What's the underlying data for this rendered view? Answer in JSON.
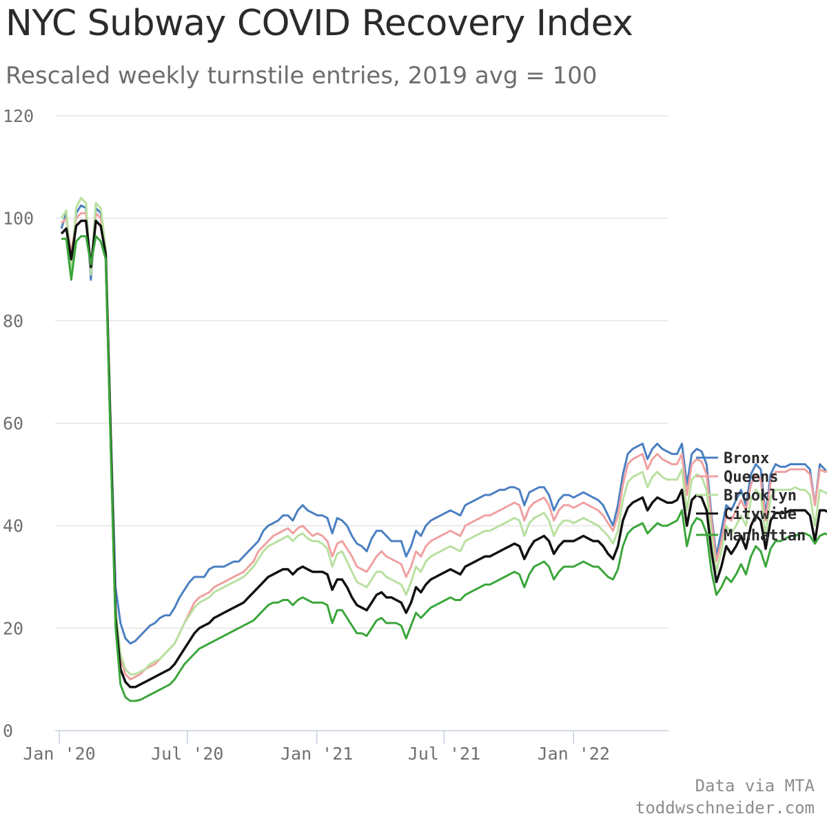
{
  "header": {
    "title": "NYC Subway COVID Recovery Index",
    "subtitle": "Rescaled weekly turnstile entries, 2019 avg = 100"
  },
  "footer": {
    "source": "Data via MTA",
    "site": "toddwschneider.com"
  },
  "chart_data": {
    "type": "line",
    "title": "NYC Subway COVID Recovery Index",
    "subtitle": "Rescaled weekly turnstile entries, 2019 avg = 100",
    "xlabel": "",
    "ylabel": "",
    "x_start": "2020-01-04",
    "x_step_days": 7,
    "xlim": [
      "2020-01-01",
      "2022-05-10"
    ],
    "ylim": [
      0,
      120
    ],
    "y_ticks": [
      0,
      20,
      40,
      60,
      80,
      100,
      120
    ],
    "x_ticks": [
      {
        "date": "2020-01-01",
        "label": "Jan '20"
      },
      {
        "date": "2020-07-01",
        "label": "Jul '20"
      },
      {
        "date": "2021-01-01",
        "label": "Jan '21"
      },
      {
        "date": "2021-07-01",
        "label": "Jul '21"
      },
      {
        "date": "2022-01-01",
        "label": "Jan '22"
      }
    ],
    "grid": true,
    "legend_position": "right",
    "series": [
      {
        "name": "Bronx",
        "color": "#4a7fc1",
        "values": [
          98,
          101,
          91,
          101,
          102.5,
          102,
          88,
          102,
          101,
          93,
          60,
          28,
          21,
          18,
          17,
          17.5,
          18.5,
          19.5,
          20.5,
          21,
          22,
          22.5,
          22.5,
          24,
          26,
          27.5,
          29,
          30,
          30,
          30,
          31.5,
          32,
          32,
          32,
          32.5,
          33,
          33,
          34,
          35,
          36,
          37,
          39,
          40,
          40.5,
          41,
          42,
          42,
          41,
          43,
          44,
          43,
          42.5,
          42,
          42,
          41.5,
          38.5,
          41.5,
          41,
          40,
          38,
          36.5,
          36,
          35,
          37.5,
          39,
          39,
          38,
          37,
          37,
          37,
          34,
          36,
          39,
          38,
          40,
          41,
          41.5,
          42,
          42.5,
          43,
          42.5,
          42,
          44,
          44.5,
          45,
          45.5,
          46,
          46,
          46.5,
          47,
          47,
          47.5,
          47.5,
          47,
          44,
          46.5,
          47,
          47.5,
          47.5,
          46,
          43,
          45,
          46,
          46,
          45.5,
          46,
          46.5,
          46,
          45.5,
          45,
          44,
          42,
          40,
          44,
          50,
          54,
          55,
          55.5,
          56,
          53,
          55,
          56,
          55,
          54.5,
          54,
          54,
          56,
          48,
          54,
          55,
          54.5,
          52,
          42,
          34,
          39,
          44,
          43,
          45,
          47,
          44,
          50,
          52,
          51,
          42,
          50,
          52,
          51.5,
          51.5,
          52,
          52,
          52,
          52,
          51,
          44,
          52,
          51,
          50,
          51.5,
          52.5
        ]
      },
      {
        "name": "Queens",
        "color": "#f0a0a0",
        "values": [
          99,
          100,
          93,
          100,
          101,
          101,
          89,
          101,
          100,
          93,
          59,
          24,
          14,
          11,
          10,
          10.5,
          11,
          12,
          12.5,
          13,
          14,
          15,
          16,
          17,
          19,
          21,
          23,
          25,
          26,
          26.5,
          27,
          28,
          28.5,
          29,
          29.5,
          30,
          30.5,
          31,
          32,
          33,
          35,
          36,
          37,
          38,
          38.5,
          39,
          39.5,
          38.5,
          39.5,
          40,
          39,
          38,
          38.5,
          38,
          37,
          34,
          36.5,
          37,
          35.5,
          34,
          32,
          31.5,
          31,
          32.5,
          34,
          35,
          34,
          33.5,
          33,
          32.5,
          30,
          32,
          35,
          34,
          36,
          37,
          37.5,
          38,
          38.5,
          39,
          38.5,
          38,
          40,
          40.5,
          41,
          41.5,
          42,
          42,
          42.5,
          43,
          43.5,
          44,
          44.5,
          44,
          41,
          43.5,
          44.5,
          45,
          45.5,
          44,
          41,
          43,
          44,
          44,
          43.5,
          44,
          44.5,
          44,
          43.5,
          43,
          42,
          40.5,
          39,
          42,
          48,
          52,
          53,
          53.5,
          54,
          51,
          53,
          54,
          53,
          52.5,
          52,
          52,
          54,
          46,
          52,
          53,
          52.5,
          50,
          41,
          33,
          37,
          42,
          41,
          43,
          45,
          43,
          48,
          50,
          49,
          41,
          48.5,
          50.5,
          50.5,
          50.5,
          51,
          51,
          51,
          51,
          50,
          44,
          51,
          50.5,
          51,
          51.5,
          51
        ]
      },
      {
        "name": "Brooklyn",
        "color": "#b8e0a0",
        "values": [
          100,
          101.5,
          90,
          102,
          104,
          103,
          89,
          103,
          102,
          94,
          60,
          24,
          15,
          12,
          11,
          11,
          11.5,
          12,
          13,
          13.5,
          14,
          15,
          16,
          17,
          19,
          21,
          22.5,
          24,
          25,
          25.5,
          26,
          27,
          27.5,
          28,
          28.5,
          29,
          29.5,
          30,
          31,
          32,
          33.5,
          35,
          36,
          36.5,
          37,
          37.5,
          38,
          37,
          38,
          38.5,
          37.5,
          37,
          37,
          36.5,
          35.5,
          32,
          34.5,
          35,
          33,
          31,
          29,
          28.5,
          28,
          29.5,
          31,
          31,
          30,
          29.5,
          29,
          28.5,
          26.5,
          29,
          32,
          31,
          33,
          34,
          34.5,
          35,
          35.5,
          36,
          35.5,
          35,
          37,
          37.5,
          38,
          38.5,
          39,
          39,
          39.5,
          40,
          40.5,
          41,
          41.5,
          41,
          38,
          40.5,
          41.5,
          42,
          42.5,
          41,
          38,
          40,
          41,
          41,
          40.5,
          41,
          41.5,
          41,
          40.5,
          40,
          39,
          38,
          36.5,
          39,
          45,
          48.5,
          49.5,
          50,
          50.5,
          47.5,
          49.5,
          50.5,
          49.5,
          49,
          49,
          49,
          51,
          43,
          49,
          50,
          49.5,
          47,
          38,
          31,
          35,
          40,
          38.5,
          40,
          42,
          40,
          45,
          47,
          46,
          38,
          45.5,
          47,
          47,
          47,
          47,
          47.5,
          47,
          47,
          46,
          40,
          47,
          46.5,
          46,
          46.5,
          46
        ]
      },
      {
        "name": "Citywide",
        "color": "#111111",
        "values": [
          97,
          98,
          92,
          98.5,
          99.5,
          99.5,
          90.5,
          99.5,
          98.5,
          93,
          58,
          22,
          12,
          9.5,
          8.5,
          8.5,
          9,
          9.5,
          10,
          10.5,
          11,
          11.5,
          12,
          13,
          14.5,
          16,
          17.5,
          19,
          20,
          20.5,
          21,
          22,
          22.5,
          23,
          23.5,
          24,
          24.5,
          25,
          26,
          27,
          28,
          29,
          30,
          30.5,
          31,
          31.5,
          31.5,
          30.5,
          31.5,
          32,
          31.5,
          31,
          31,
          31,
          30.5,
          27.5,
          29.5,
          29.5,
          28,
          26,
          24.5,
          24,
          23.5,
          25,
          26.5,
          27,
          26,
          26,
          25.5,
          25,
          23,
          25,
          28,
          27,
          28.5,
          29.5,
          30,
          30.5,
          31,
          31.5,
          31,
          30.5,
          32,
          32.5,
          33,
          33.5,
          34,
          34,
          34.5,
          35,
          35.5,
          36,
          36.5,
          36,
          33.5,
          35.5,
          37,
          37.5,
          38,
          37,
          34.5,
          36,
          37,
          37,
          37,
          37.5,
          38,
          37.5,
          37,
          37,
          36,
          34.5,
          33.5,
          36,
          41,
          43.5,
          44.5,
          45,
          45.5,
          43,
          44.5,
          45.5,
          45,
          44.5,
          44.5,
          45,
          47,
          40,
          45,
          46,
          45.5,
          43,
          35,
          29,
          32,
          36,
          34.5,
          36,
          38,
          35.5,
          40,
          42,
          41,
          35.5,
          41,
          42.5,
          42.5,
          42.5,
          43,
          43,
          43,
          43,
          42,
          37,
          43,
          43,
          42.5,
          43,
          43
        ]
      },
      {
        "name": "Manhattan",
        "color": "#3aa53a",
        "values": [
          96,
          96,
          88,
          95.5,
          96.5,
          96.5,
          91,
          96.5,
          95.5,
          92,
          56,
          20,
          9,
          6.5,
          5.8,
          5.8,
          6,
          6.5,
          7,
          7.5,
          8,
          8.5,
          9,
          10,
          11.5,
          13,
          14,
          15,
          16,
          16.5,
          17,
          17.5,
          18,
          18.5,
          19,
          19.5,
          20,
          20.5,
          21,
          21.5,
          22.5,
          23.5,
          24.5,
          25,
          25,
          25.5,
          25.5,
          24.5,
          25.5,
          26,
          25.5,
          25,
          25,
          25,
          24.5,
          21,
          23.5,
          23.5,
          22,
          20.5,
          19,
          19,
          18.5,
          20,
          21.5,
          22,
          21,
          21,
          21,
          20.5,
          18,
          20.5,
          23,
          22,
          23,
          24,
          24.5,
          25,
          25.5,
          26,
          25.5,
          25.5,
          26.5,
          27,
          27.5,
          28,
          28.5,
          28.5,
          29,
          29.5,
          30,
          30.5,
          31,
          30.5,
          28,
          30.5,
          32,
          32.5,
          33,
          32,
          29.5,
          31,
          32,
          32,
          32,
          32.5,
          33,
          32.5,
          32,
          32,
          31,
          30,
          29.5,
          31.5,
          36,
          38.5,
          39.5,
          40,
          40.5,
          38.5,
          39.5,
          40.5,
          40,
          40,
          40.5,
          41,
          43,
          36,
          40,
          41.5,
          41,
          38.5,
          31,
          26.5,
          28,
          30,
          29,
          30.5,
          32.5,
          30.5,
          34,
          36,
          35,
          32,
          35.5,
          37,
          37,
          37.5,
          38,
          38,
          38.5,
          38.5,
          38,
          36.5,
          38,
          38.5,
          38,
          38,
          38
        ]
      }
    ]
  }
}
